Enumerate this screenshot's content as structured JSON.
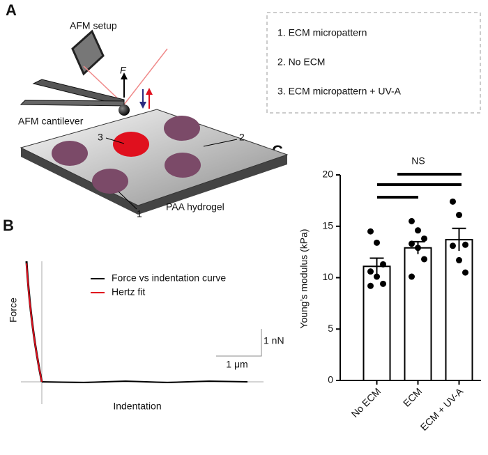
{
  "panel_labels": [
    "A",
    "B",
    "C"
  ],
  "panel_a": {
    "setup_label": "AFM setup",
    "force_label": "F",
    "cantilever_label": "AFM cantilever",
    "hydrogel_label": "PAA hydrogel",
    "region_numbers": [
      "1",
      "2",
      "3"
    ],
    "legend": [
      "1. ECM micropattern",
      "2. No ECM",
      "3. ECM micropattern + UV-A"
    ]
  },
  "panel_b": {
    "y_label": "Force",
    "x_label": "Indentation",
    "legend": [
      "Force vs indentation curve",
      "Hertz fit"
    ],
    "scale_force": "1 nN",
    "scale_indentation": "1 μm"
  },
  "chart_data": {
    "type": "bar",
    "y_label": "Young’s modulus (kPa)",
    "annotation": "NS",
    "categories": [
      "No ECM",
      "ECM",
      "ECM + UV-A"
    ],
    "values": [
      11.1,
      12.9,
      13.7
    ],
    "errors": [
      0.8,
      0.6,
      1.1
    ],
    "points": [
      [
        14.5,
        13.4,
        11.3,
        10.6,
        10.1,
        9.4,
        9.2
      ],
      [
        15.5,
        14.6,
        13.8,
        13.3,
        12.9,
        11.8,
        10.1
      ],
      [
        17.4,
        16.1,
        13.2,
        13.1,
        11.7,
        10.5
      ]
    ],
    "color": "#ffffff",
    "ylim": [
      0,
      20
    ],
    "yticks": [
      0,
      5,
      10,
      15,
      20
    ]
  }
}
